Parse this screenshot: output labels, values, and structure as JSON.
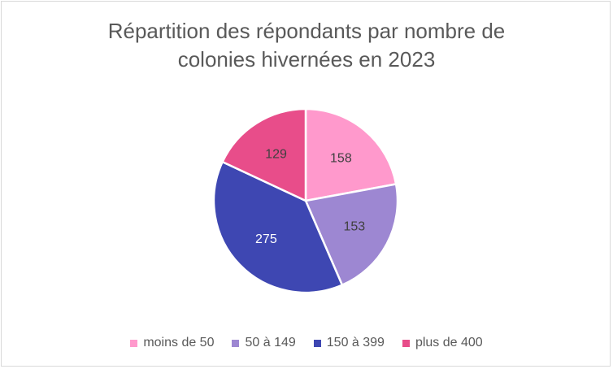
{
  "chart_data": {
    "type": "pie",
    "title_lines": [
      "Répartition des répondants par nombre de",
      "colonies hivernées en 2023"
    ],
    "categories": [
      "moins de 50",
      "50 à 149",
      "150 à 399",
      "plus de 400"
    ],
    "values": [
      158,
      153,
      275,
      129
    ],
    "data_labels": [
      "158",
      "153",
      "275",
      "129"
    ],
    "colors": [
      "#ff99cc",
      "#9d87d2",
      "#3e47b2",
      "#e84d8a"
    ],
    "label_colors": [
      "#404040",
      "#404040",
      "#ffffff",
      "#404040"
    ],
    "legend_position": "bottom",
    "start_angle_deg": 0,
    "direction": "clockwise"
  }
}
